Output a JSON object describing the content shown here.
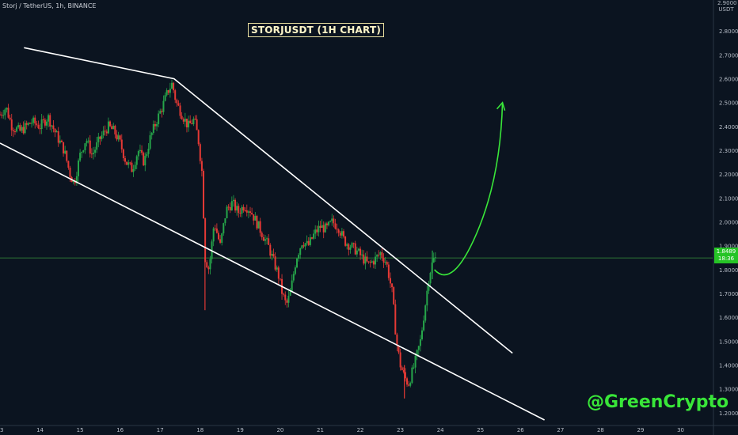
{
  "header": {
    "symbol_info": "Storj / TetherUS, 1h, BINANCE",
    "chart_title": "STORJUSDT (1H CHART)",
    "watermark": "@GreenCrypto",
    "axis_unit": "USDT",
    "axis_top_label": "2.9000"
  },
  "price_tag": {
    "price": "1.8489",
    "countdown": "18:36"
  },
  "colors": {
    "background": "#0b1420",
    "grid": "#1a2634",
    "bull": "#26a64a",
    "bear": "#e53935",
    "trendline": "#ffffff",
    "projection": "#39e639",
    "price_line": "#3fa83f",
    "axis_text": "#b8bec8"
  },
  "chart_data": {
    "type": "candlestick",
    "title": "STORJUSDT (1H CHART)",
    "xlabel": "",
    "ylabel": "",
    "x_ticks": [
      "13",
      "14",
      "15",
      "16",
      "17",
      "18",
      "19",
      "20",
      "21",
      "22",
      "23",
      "24",
      "25",
      "26",
      "27",
      "28",
      "29",
      "30"
    ],
    "y_ticks": [
      "1.2000",
      "1.3000",
      "1.4000",
      "1.5000",
      "1.6000",
      "1.7000",
      "1.8000",
      "1.9000",
      "2.0000",
      "2.1000",
      "2.2000",
      "2.3000",
      "2.4000",
      "2.5000",
      "2.6000",
      "2.7000",
      "2.8000"
    ],
    "ylim": [
      1.15,
      2.93
    ],
    "xlim": [
      13.0,
      30.8
    ],
    "current_price": 1.8489,
    "grid": false,
    "price_path": [
      [
        13.0,
        2.45
      ],
      [
        13.15,
        2.48
      ],
      [
        13.3,
        2.4
      ],
      [
        13.5,
        2.38
      ],
      [
        13.8,
        2.42
      ],
      [
        14.0,
        2.4
      ],
      [
        14.2,
        2.44
      ],
      [
        14.45,
        2.35
      ],
      [
        14.6,
        2.3
      ],
      [
        14.75,
        2.2
      ],
      [
        14.85,
        2.16
      ],
      [
        15.0,
        2.28
      ],
      [
        15.15,
        2.35
      ],
      [
        15.3,
        2.28
      ],
      [
        15.5,
        2.35
      ],
      [
        15.7,
        2.4
      ],
      [
        15.85,
        2.38
      ],
      [
        16.0,
        2.33
      ],
      [
        16.15,
        2.25
      ],
      [
        16.3,
        2.22
      ],
      [
        16.45,
        2.3
      ],
      [
        16.6,
        2.25
      ],
      [
        16.75,
        2.35
      ],
      [
        16.9,
        2.42
      ],
      [
        17.05,
        2.48
      ],
      [
        17.2,
        2.55
      ],
      [
        17.3,
        2.58
      ],
      [
        17.4,
        2.5
      ],
      [
        17.55,
        2.45
      ],
      [
        17.7,
        2.4
      ],
      [
        17.85,
        2.43
      ],
      [
        17.95,
        2.35
      ],
      [
        18.05,
        2.2
      ],
      [
        18.12,
        1.85
      ],
      [
        18.22,
        1.8
      ],
      [
        18.35,
        2.0
      ],
      [
        18.5,
        1.9
      ],
      [
        18.65,
        2.05
      ],
      [
        18.8,
        2.08
      ],
      [
        18.95,
        2.04
      ],
      [
        19.1,
        2.07
      ],
      [
        19.25,
        2.05
      ],
      [
        19.4,
        2.0
      ],
      [
        19.55,
        1.95
      ],
      [
        19.7,
        1.9
      ],
      [
        19.8,
        1.85
      ],
      [
        19.95,
        1.78
      ],
      [
        20.05,
        1.7
      ],
      [
        20.15,
        1.65
      ],
      [
        20.25,
        1.7
      ],
      [
        20.4,
        1.85
      ],
      [
        20.55,
        1.92
      ],
      [
        20.7,
        1.9
      ],
      [
        20.85,
        1.95
      ],
      [
        21.0,
        1.98
      ],
      [
        21.15,
        1.97
      ],
      [
        21.3,
        2.0
      ],
      [
        21.45,
        1.98
      ],
      [
        21.6,
        1.92
      ],
      [
        21.75,
        1.9
      ],
      [
        21.9,
        1.88
      ],
      [
        22.05,
        1.85
      ],
      [
        22.2,
        1.82
      ],
      [
        22.35,
        1.84
      ],
      [
        22.5,
        1.87
      ],
      [
        22.65,
        1.83
      ],
      [
        22.8,
        1.7
      ],
      [
        22.9,
        1.5
      ],
      [
        23.0,
        1.4
      ],
      [
        23.1,
        1.35
      ],
      [
        23.2,
        1.32
      ],
      [
        23.35,
        1.4
      ],
      [
        23.5,
        1.5
      ],
      [
        23.62,
        1.65
      ],
      [
        23.72,
        1.78
      ],
      [
        23.82,
        1.84
      ],
      [
        23.9,
        1.8489
      ]
    ],
    "lines": [
      {
        "name": "",
        "points": [
          [
            13.6,
            2.73
          ],
          [
            17.35,
            2.6
          ],
          [
            25.8,
            1.45
          ]
        ]
      },
      {
        "name": "",
        "points": [
          [
            13.0,
            2.33
          ],
          [
            26.6,
            1.17
          ]
        ]
      }
    ],
    "projection": [
      [
        23.85,
        1.8
      ],
      [
        24.3,
        1.75
      ],
      [
        24.9,
        1.95
      ],
      [
        25.2,
        2.25
      ],
      [
        25.55,
        2.5
      ]
    ]
  }
}
